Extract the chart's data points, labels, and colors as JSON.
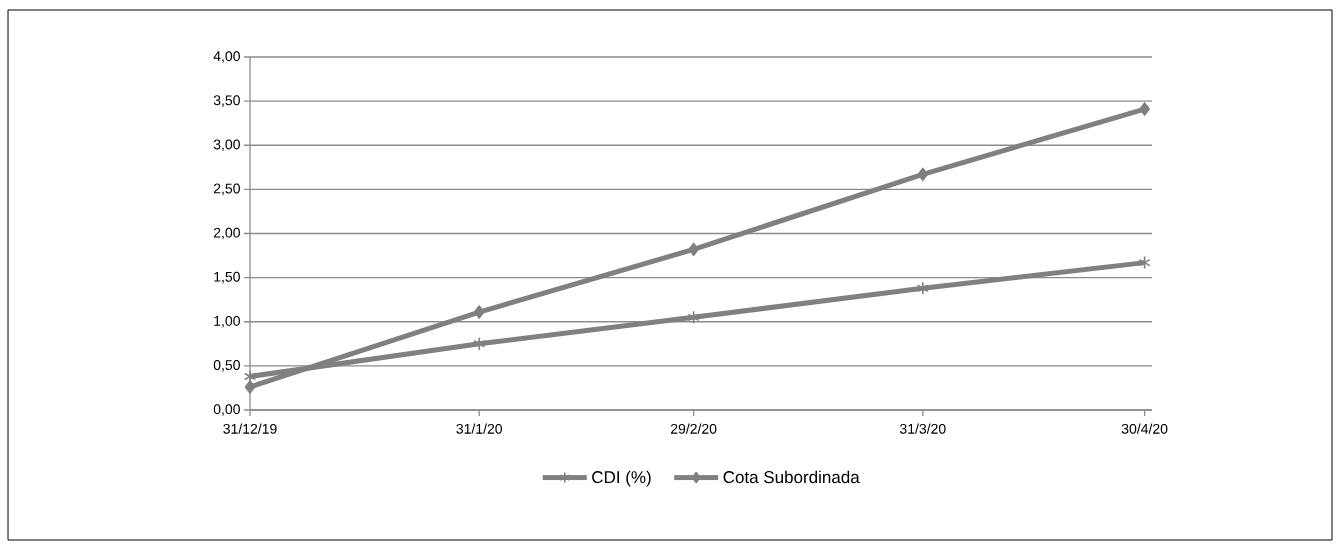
{
  "chart_data": {
    "type": "line",
    "x": [
      "2019-12-31",
      "2020-01-31",
      "2020-02-29",
      "2020-03-31",
      "2020-04-30"
    ],
    "series": [
      {
        "name": "CDI (%)",
        "color": "#808080",
        "marker": "cross",
        "values": [
          0.38,
          0.75,
          1.05,
          1.38,
          1.67
        ]
      },
      {
        "name": "Cota Subordinada",
        "color": "#808080",
        "marker": "diamond",
        "values": [
          0.26,
          1.11,
          1.82,
          2.67,
          3.41
        ]
      }
    ],
    "xlim": [
      "2019-12-31",
      "2020-05-01"
    ],
    "xticks": [
      {
        "value": "2019-12-31",
        "label": "31/12/19"
      },
      {
        "value": "2020-01-31",
        "label": "31/1/20"
      },
      {
        "value": "2020-02-29",
        "label": "29/2/20"
      },
      {
        "value": "2020-03-31",
        "label": "31/3/20"
      },
      {
        "value": "2020-04-30",
        "label": "30/4/20"
      }
    ],
    "ylim": [
      0,
      4
    ],
    "yticks": [
      {
        "value": 0,
        "label": "0,00"
      },
      {
        "value": 0.5,
        "label": "0,50"
      },
      {
        "value": 1,
        "label": "1,00"
      },
      {
        "value": 1.5,
        "label": "1,50"
      },
      {
        "value": 2,
        "label": "2,00"
      },
      {
        "value": 2.5,
        "label": "2,50"
      },
      {
        "value": 3,
        "label": "3,00"
      },
      {
        "value": 3.5,
        "label": "3,50"
      },
      {
        "value": 4,
        "label": "4,00"
      }
    ],
    "grid": "y",
    "legend": "bottom",
    "line_style": "solid"
  }
}
